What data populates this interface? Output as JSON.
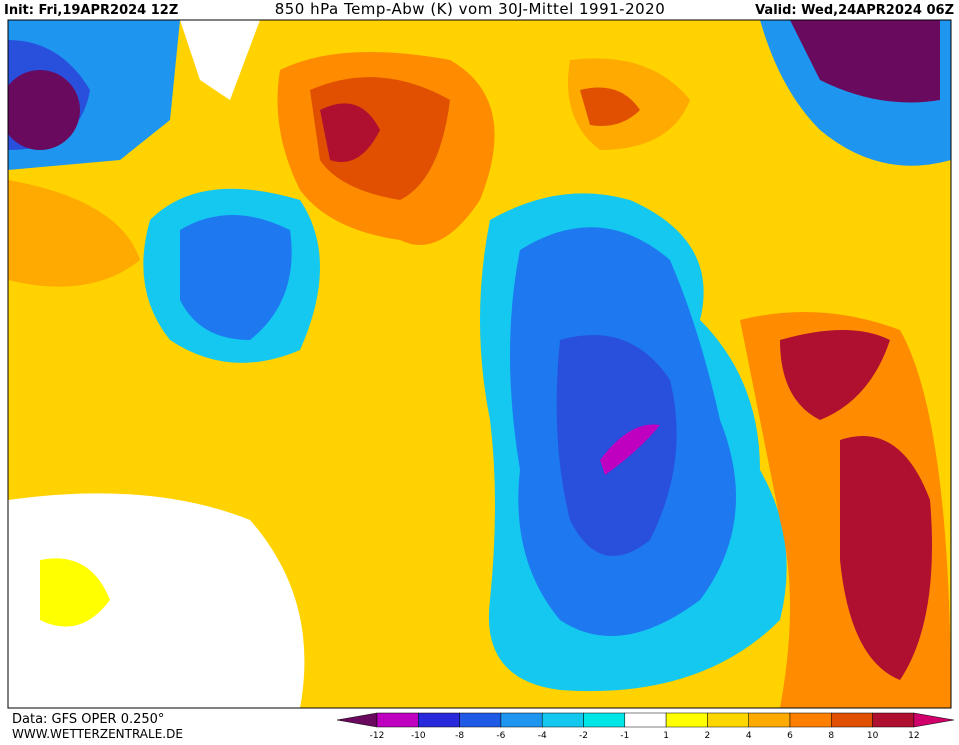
{
  "header": {
    "init": "Init: Fri,19APR2024 12Z",
    "title": "850 hPa Temp-Abw (K) vom 30J-Mittel 1991-2020",
    "valid": "Valid: Wed,24APR2024 06Z"
  },
  "footer": {
    "source": "Data: GFS OPER 0.250°",
    "website": "WWW.WETTERZENTRALE.DE"
  },
  "legend": {
    "ticks": [
      "-12",
      "-10",
      "-8",
      "-6",
      "-4",
      "-2",
      "-1",
      "1",
      "2",
      "4",
      "6",
      "8",
      "10",
      "12"
    ]
  }
}
